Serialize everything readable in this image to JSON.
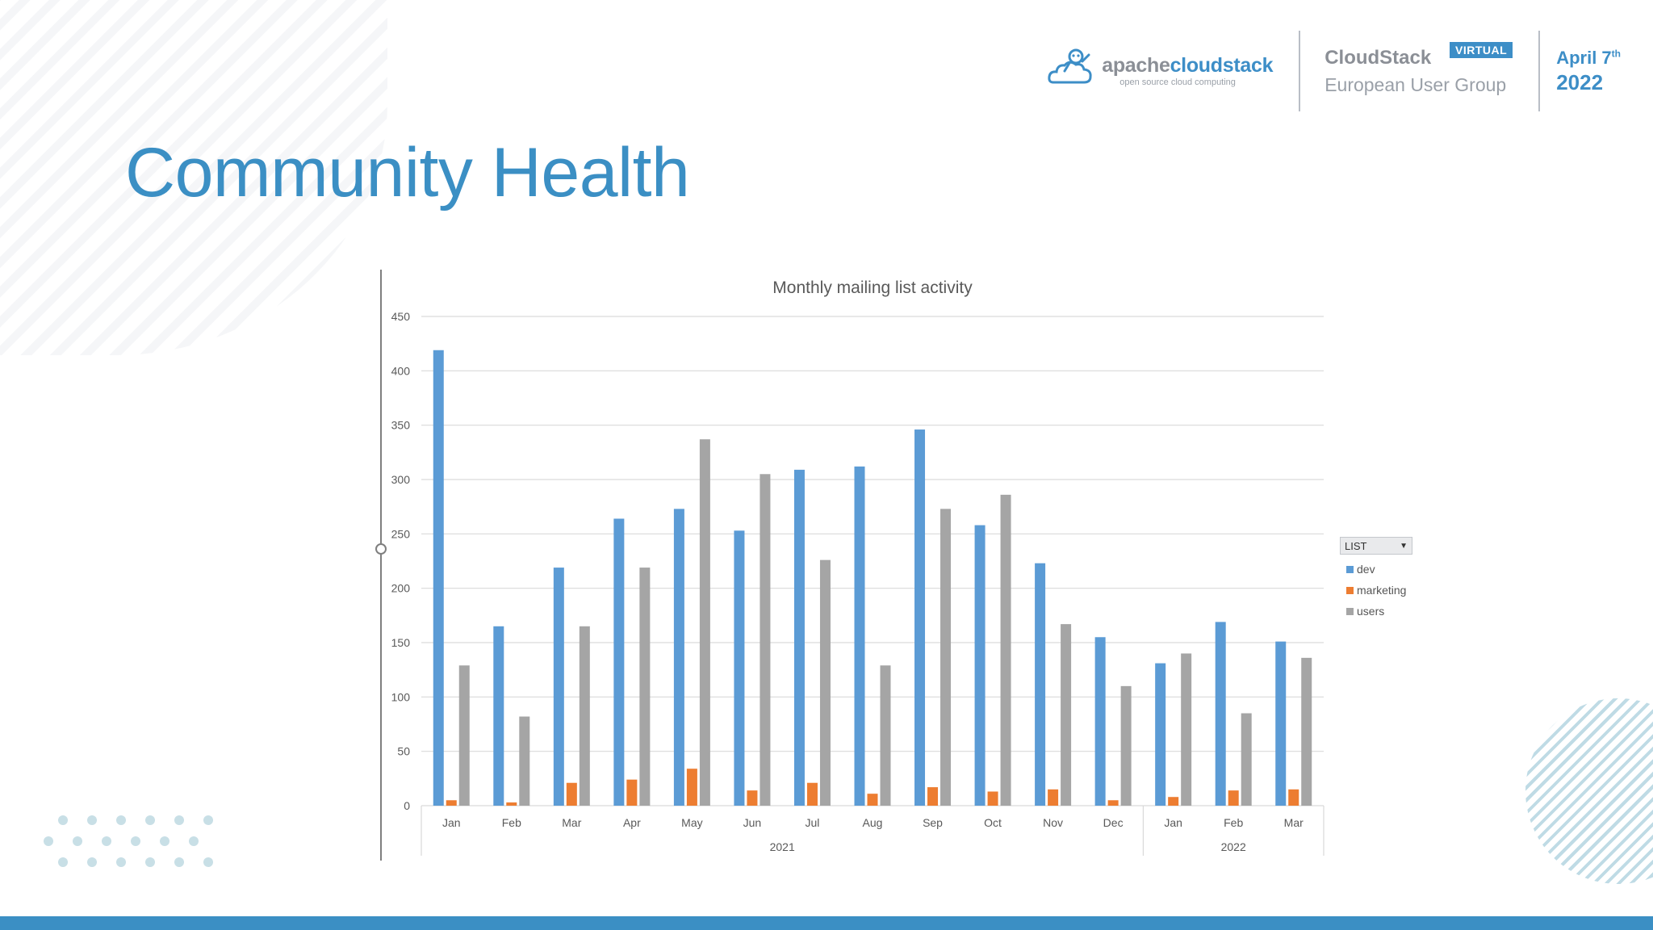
{
  "header": {
    "logo": {
      "name_part1": "apache",
      "name_part2": "cloudstack",
      "tagline": "open source cloud computing"
    },
    "event": {
      "name": "CloudStack",
      "subtitle": "European User Group",
      "badge": "VIRTUAL"
    },
    "date": {
      "month_day": "April 7",
      "suffix": "th",
      "year": "2022"
    }
  },
  "page_title": "Community Health",
  "legend": {
    "filter_label": "LIST"
  },
  "colors": {
    "accent": "#3b8fc4",
    "dev": "#5b9bd5",
    "marketing": "#ed7d31",
    "users": "#a5a5a5"
  },
  "chart_data": {
    "type": "bar",
    "title": "Monthly mailing list activity",
    "xlabel": "",
    "ylabel": "",
    "ylim": [
      0,
      450
    ],
    "yticks": [
      0,
      50,
      100,
      150,
      200,
      250,
      300,
      350,
      400,
      450
    ],
    "grid": true,
    "legend_position": "right",
    "categories": [
      "Jan",
      "Feb",
      "Mar",
      "Apr",
      "May",
      "Jun",
      "Jul",
      "Aug",
      "Sep",
      "Oct",
      "Nov",
      "Dec",
      "Jan",
      "Feb",
      "Mar"
    ],
    "groups": [
      {
        "label": "2021",
        "count": 12
      },
      {
        "label": "2022",
        "count": 3
      }
    ],
    "series": [
      {
        "name": "dev",
        "color": "#5b9bd5",
        "values": [
          419,
          165,
          219,
          264,
          273,
          253,
          309,
          312,
          346,
          258,
          223,
          155,
          131,
          169,
          151
        ]
      },
      {
        "name": "marketing",
        "color": "#ed7d31",
        "values": [
          5,
          3,
          21,
          24,
          34,
          14,
          21,
          11,
          17,
          13,
          15,
          5,
          8,
          14,
          15
        ]
      },
      {
        "name": "users",
        "color": "#a5a5a5",
        "values": [
          129,
          82,
          165,
          219,
          337,
          305,
          226,
          129,
          273,
          286,
          167,
          110,
          140,
          85,
          136
        ]
      }
    ]
  }
}
